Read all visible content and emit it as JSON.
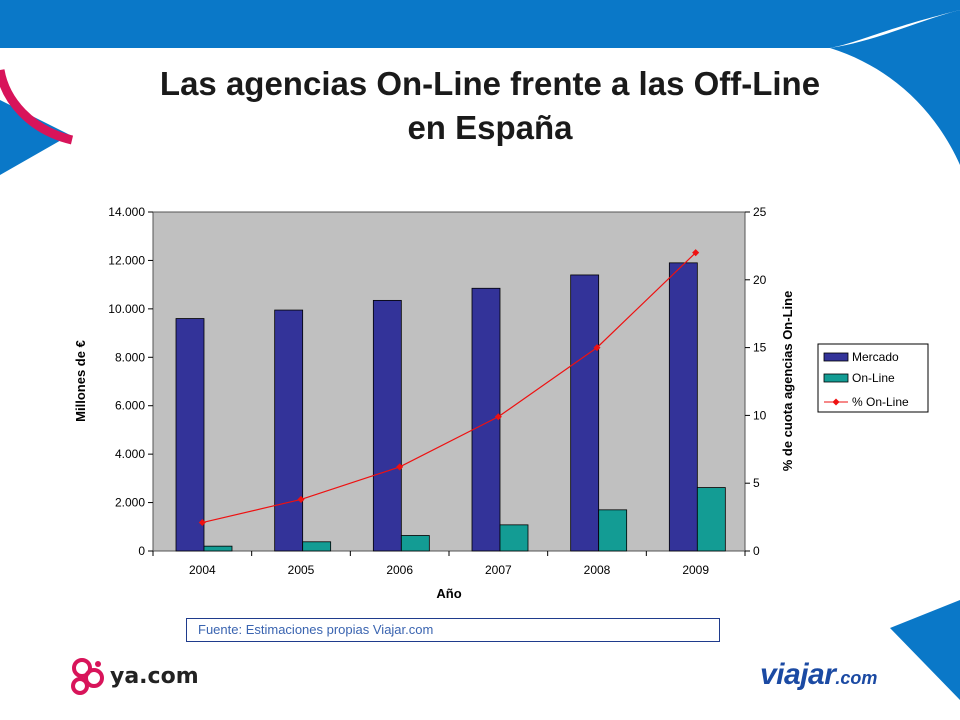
{
  "slide": {
    "title_line1": "Las agencias On-Line frente a las Off-Line",
    "title_line2": "en España",
    "source": "Fuente: Estimaciones propias Viajar.com",
    "logo_left_text": "ya.com",
    "logo_right_main": "viajar",
    "logo_right_suffix": ".com"
  },
  "colors": {
    "mercado": "#333399",
    "online": "#139c94",
    "pct": "#ee1111",
    "plot_bg": "#c0c0c0",
    "deco_blue": "#0a78c8",
    "deco_pink": "#d8145a"
  },
  "chart_data": {
    "type": "bar",
    "xlabel": "Año",
    "ylabel": "Millones de €",
    "y2label": "% de cuota agencias On-Line",
    "categories": [
      "2004",
      "2005",
      "2006",
      "2007",
      "2008",
      "2009"
    ],
    "ylim": [
      0,
      14000
    ],
    "yticks": [
      "0",
      "2.000",
      "4.000",
      "6.000",
      "8.000",
      "10.000",
      "12.000",
      "14.000"
    ],
    "y2lim": [
      0,
      25
    ],
    "y2ticks": [
      "0",
      "5",
      "10",
      "15",
      "20",
      "25"
    ],
    "legend_position": "right",
    "grid": false,
    "series": [
      {
        "name": "Mercado",
        "type": "bar",
        "axis": "left",
        "values": [
          9600,
          9950,
          10350,
          10850,
          11400,
          11900
        ]
      },
      {
        "name": "On-Line",
        "type": "bar",
        "axis": "left",
        "values": [
          200,
          380,
          640,
          1080,
          1700,
          2620
        ]
      },
      {
        "name": "% On-Line",
        "type": "line",
        "axis": "right",
        "values": [
          2.1,
          3.8,
          6.2,
          9.9,
          15.0,
          22.0
        ]
      }
    ]
  }
}
